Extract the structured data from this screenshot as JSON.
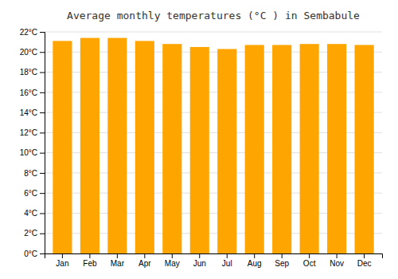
{
  "chart_data": {
    "type": "bar",
    "title": "Average monthly temperatures (°C ) in Sembabule",
    "categories": [
      "Jan",
      "Feb",
      "Mar",
      "Apr",
      "May",
      "Jun",
      "Jul",
      "Aug",
      "Sep",
      "Oct",
      "Nov",
      "Dec"
    ],
    "values": [
      21.1,
      21.4,
      21.4,
      21.1,
      20.8,
      20.5,
      20.3,
      20.7,
      20.7,
      20.8,
      20.8,
      20.7
    ],
    "color": "#FFA500",
    "ylim": [
      0,
      22
    ],
    "yticks": [
      {
        "value": 0,
        "label": "0°C"
      },
      {
        "value": 2,
        "label": "2°C"
      },
      {
        "value": 4,
        "label": "4°C"
      },
      {
        "value": 6,
        "label": "6°C"
      },
      {
        "value": 8,
        "label": "8°C"
      },
      {
        "value": 10,
        "label": "10°C"
      },
      {
        "value": 12,
        "label": "12°C"
      },
      {
        "value": 14,
        "label": "14°C"
      },
      {
        "value": 16,
        "label": "16°C"
      },
      {
        "value": 18,
        "label": "18°C"
      },
      {
        "value": 20,
        "label": "20°C"
      },
      {
        "value": 22,
        "label": "22°C"
      }
    ],
    "grid": true
  }
}
